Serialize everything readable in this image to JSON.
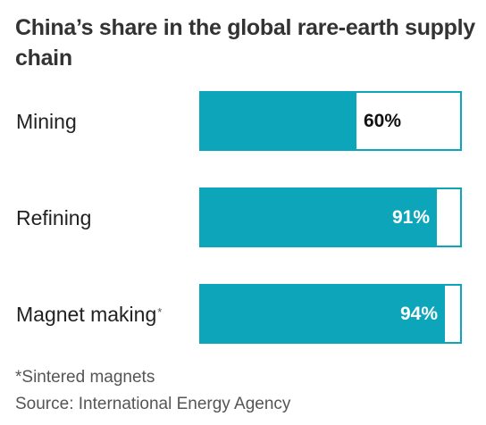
{
  "chart_data": {
    "type": "bar",
    "orientation": "horizontal",
    "title": "China’s share in the global rare-earth supply chain",
    "categories": [
      "Mining",
      "Refining",
      "Magnet making"
    ],
    "category_markers": [
      "",
      "",
      "*"
    ],
    "values": [
      60,
      91,
      94
    ],
    "value_labels": [
      "60%",
      "91%",
      "94%"
    ],
    "unit": "%",
    "xlim": [
      0,
      100
    ],
    "grid": false,
    "legend": "none",
    "bar_color": "#0da5b9",
    "remainder_color": "#ffffff",
    "footnote": "*Sintered magnets",
    "source": "Source: International Energy Agency"
  }
}
